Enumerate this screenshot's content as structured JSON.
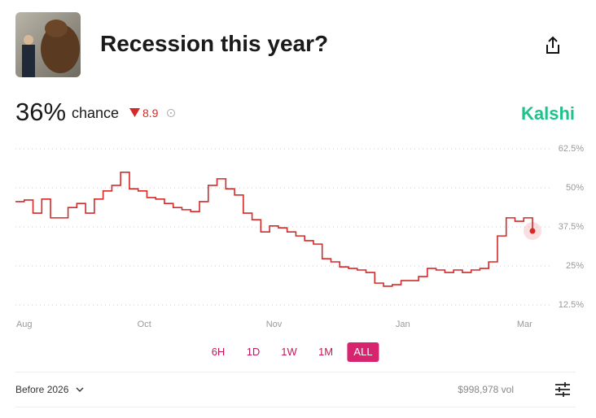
{
  "header": {
    "title": "Recession this year?"
  },
  "stats": {
    "probability": "36%",
    "chance_label": "chance",
    "change": "8.9",
    "brand": "Kalshi"
  },
  "chart_data": {
    "type": "line",
    "color": "#d42a2a",
    "values": [
      45.6,
      46.1,
      41.9,
      46.4,
      40.4,
      40.4,
      43.7,
      45,
      41.9,
      46.4,
      49,
      50.8,
      55,
      49.7,
      49,
      46.9,
      46.4,
      45,
      43.7,
      43,
      42.4,
      45.6,
      50.8,
      52.9,
      49.7,
      47.7,
      41.9,
      39.8,
      35.9,
      37.8,
      37.2,
      35.9,
      34.6,
      33.1,
      32,
      27.3,
      26.3,
      24.7,
      24.2,
      23.7,
      22.9,
      19.5,
      18.5,
      19,
      20.3,
      20.3,
      21.6,
      24.2,
      23.7,
      22.9,
      23.7,
      22.9,
      23.7,
      24.2,
      26.3,
      34.6,
      40.4,
      39.3,
      40.4,
      36.2
    ],
    "xlim": [
      0,
      59
    ],
    "xticks": [
      {
        "value": 1,
        "label": "Aug"
      },
      {
        "value": 14.7,
        "label": "Oct"
      },
      {
        "value": 29.5,
        "label": "Nov"
      },
      {
        "value": 44.2,
        "label": "Jan"
      },
      {
        "value": 58.1,
        "label": "Mar"
      }
    ],
    "ylim": [
      12.5,
      62.5
    ],
    "yticks": [
      {
        "value": 62.5,
        "label": "62.5%"
      },
      {
        "value": 50,
        "label": "50%"
      },
      {
        "value": 37.5,
        "label": "37.5%"
      },
      {
        "value": 25,
        "label": "25%"
      },
      {
        "value": 12.5,
        "label": "12.5%"
      }
    ],
    "grid": true
  },
  "ranges": {
    "buttons": [
      "6H",
      "1D",
      "1W",
      "1M",
      "ALL"
    ],
    "active": "ALL"
  },
  "footer": {
    "filter": "Before 2026",
    "volume": "$998,978 vol"
  }
}
